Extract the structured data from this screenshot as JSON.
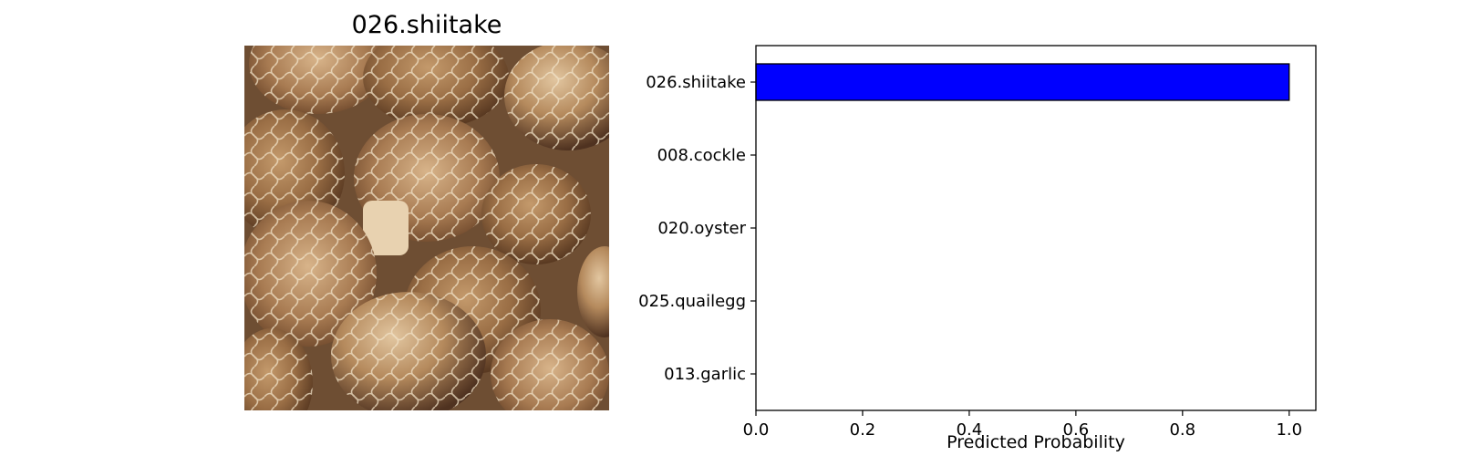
{
  "image_panel": {
    "title": "026.shiitake",
    "subject": "shiitake mushrooms photo"
  },
  "colors": {
    "bar_fill": "#0000ff",
    "bar_edge": "#000000",
    "axes": "#000000",
    "background": "#ffffff"
  },
  "chart_data": {
    "type": "bar",
    "orientation": "horizontal",
    "categories": [
      "026.shiitake",
      "008.cockle",
      "020.oyster",
      "025.quailegg",
      "013.garlic"
    ],
    "values": [
      1.0,
      0.0,
      0.0,
      0.0,
      0.0
    ],
    "xlabel": "Predicted Probability",
    "ylabel": "",
    "title": "",
    "xlim": [
      0,
      1.05
    ],
    "xticks": [
      0.0,
      0.2,
      0.4,
      0.6,
      0.8,
      1.0
    ],
    "xtick_labels": [
      "0.0",
      "0.2",
      "0.4",
      "0.6",
      "0.8",
      "1.0"
    ],
    "grid": false,
    "legend": "none"
  }
}
